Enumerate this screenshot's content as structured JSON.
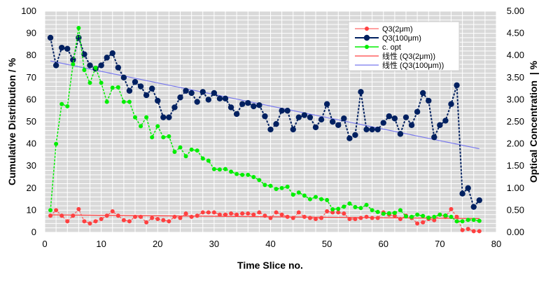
{
  "chart_data": {
    "type": "line",
    "title": "",
    "xlabel": "Time Slice no.",
    "ylabel": "Cumulative Distribution / %",
    "y2label": "Optical Concentration  | %",
    "xlim": [
      0,
      80
    ],
    "ylim": [
      0,
      100
    ],
    "y2lim": [
      0,
      5
    ],
    "xticks": [
      "0",
      "10",
      "20",
      "30",
      "40",
      "50",
      "60",
      "70",
      "80"
    ],
    "yticks": [
      "0",
      "10",
      "20",
      "30",
      "40",
      "50",
      "60",
      "70",
      "80",
      "90",
      "100"
    ],
    "y2ticks": [
      "0.00",
      "0.50",
      "1.00",
      "1.50",
      "2.00",
      "2.50",
      "3.00",
      "3.50",
      "4.00",
      "4.50",
      "5.00"
    ],
    "grid": true,
    "legend_position": "top-right",
    "x": [
      1,
      2,
      3,
      4,
      5,
      6,
      7,
      8,
      9,
      10,
      11,
      12,
      13,
      14,
      15,
      16,
      17,
      18,
      19,
      20,
      21,
      22,
      23,
      24,
      25,
      26,
      27,
      28,
      29,
      30,
      31,
      32,
      33,
      34,
      35,
      36,
      37,
      38,
      39,
      40,
      41,
      42,
      43,
      44,
      45,
      46,
      47,
      48,
      49,
      50,
      51,
      52,
      53,
      54,
      55,
      56,
      57,
      58,
      59,
      60,
      61,
      62,
      63,
      64,
      65,
      66,
      67,
      68,
      69,
      70,
      71,
      72,
      73,
      74,
      75,
      76,
      77
    ],
    "series": [
      {
        "name": "Q3(2μm)",
        "axis": "left",
        "color": "#ff4040",
        "values": [
          7.5,
          10,
          7.5,
          5,
          7.5,
          10.5,
          5,
          4,
          5,
          6,
          7.5,
          9.5,
          7.5,
          5.5,
          5,
          7,
          7,
          4.5,
          6.5,
          6,
          5.5,
          5,
          7,
          6.5,
          8.5,
          7,
          7.5,
          9,
          9,
          9,
          8,
          8,
          8.5,
          8,
          8.5,
          8.5,
          8,
          9,
          7.5,
          6.5,
          9,
          8,
          7,
          6.5,
          9,
          7,
          6.5,
          6,
          6.5,
          9.5,
          9,
          9,
          8.5,
          6,
          6,
          6.5,
          7,
          6.5,
          6.5,
          9,
          8,
          7.5,
          6,
          7.5,
          6.5,
          4,
          4.5,
          6,
          5.5,
          8,
          7,
          10.5,
          7,
          1,
          1.5,
          0.5,
          0.5
        ]
      },
      {
        "name": "Q3(100μm)",
        "axis": "left",
        "color": "#002060",
        "values": [
          88,
          75.5,
          83.5,
          83,
          78,
          88,
          80.5,
          75.5,
          74,
          75.5,
          79,
          81,
          74.5,
          70,
          64,
          68,
          66,
          62,
          65,
          59.5,
          52,
          52,
          56.5,
          61,
          64,
          63,
          59,
          63.5,
          60,
          63,
          60.5,
          60.5,
          56.5,
          53.5,
          58,
          58.5,
          57,
          57.5,
          52.5,
          46.5,
          49,
          55,
          55,
          46.5,
          52,
          53,
          52,
          47.5,
          51,
          58,
          50,
          48.5,
          51.5,
          42.5,
          44,
          63.5,
          46.5,
          46.5,
          46.5,
          49.5,
          52.5,
          51.5,
          44.5,
          52,
          48.5,
          54.5,
          63,
          59.5,
          43,
          48.5,
          50.5,
          58,
          66.5,
          17.5,
          20,
          11.5,
          14.5
        ]
      },
      {
        "name": "c. opt",
        "axis": "right",
        "color": "#00ee00",
        "values": [
          0.5,
          2.0,
          2.9,
          2.85,
          3.8,
          4.62,
          3.67,
          3.38,
          3.72,
          3.38,
          2.95,
          3.27,
          3.28,
          2.95,
          2.95,
          2.6,
          2.4,
          2.6,
          2.15,
          2.4,
          2.15,
          2.17,
          1.82,
          1.92,
          1.72,
          1.87,
          1.85,
          1.67,
          1.62,
          1.43,
          1.42,
          1.43,
          1.37,
          1.32,
          1.3,
          1.3,
          1.25,
          1.18,
          1.07,
          1.05,
          0.98,
          1.0,
          1.03,
          0.85,
          0.9,
          0.83,
          0.75,
          0.8,
          0.75,
          0.73,
          0.52,
          0.53,
          0.58,
          0.65,
          0.57,
          0.55,
          0.62,
          0.5,
          0.46,
          0.42,
          0.43,
          0.44,
          0.5,
          0.36,
          0.35,
          0.4,
          0.37,
          0.33,
          0.35,
          0.4,
          0.38,
          0.35,
          0.25,
          0.25,
          0.28,
          0.28,
          0.26
        ]
      }
    ],
    "trendlines": [
      {
        "name": "线性 (Q3(2μm))",
        "color": "#ff4040",
        "x": [
          1,
          77
        ],
        "y": [
          7.9,
          6.2
        ]
      },
      {
        "name": "线性 (Q3(100μm))",
        "color": "#7777ee",
        "x": [
          1,
          77
        ],
        "y": [
          77.5,
          37.8
        ]
      }
    ]
  }
}
